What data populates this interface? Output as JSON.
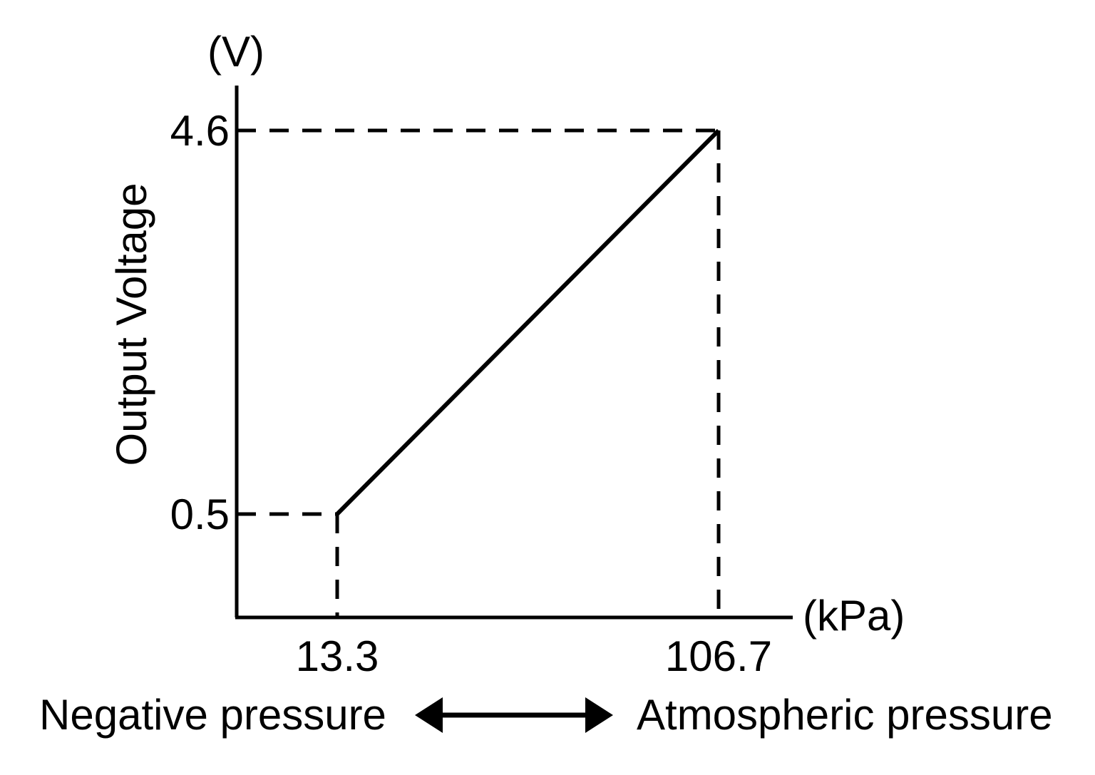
{
  "figure": {
    "background_color": "#ffffff",
    "ink_color": "#000000"
  },
  "chart_data": {
    "type": "line",
    "title": "",
    "xlabel": "(kPa)",
    "ylabel": "Output Voltage",
    "ylabel_unit": "(V)",
    "x": [
      13.3,
      106.7
    ],
    "y": [
      0.5,
      4.6
    ],
    "points": [
      {
        "x": 13.3,
        "y": 0.5,
        "x_label": "13.3",
        "y_label": "0.5"
      },
      {
        "x": 106.7,
        "y": 4.6,
        "x_label": "106.7",
        "y_label": "4.6"
      }
    ],
    "series": [
      {
        "name": "output-voltage-vs-pressure",
        "x": [
          13.3,
          106.7
        ],
        "values": [
          0.5,
          4.6
        ]
      }
    ],
    "x_axis_annotation": {
      "left": "Negative pressure",
      "right": "Atmospheric pressure",
      "arrow": "double-headed"
    },
    "grid": "off",
    "legend": "none",
    "guides": "dashed lines from each data point to both axes"
  }
}
